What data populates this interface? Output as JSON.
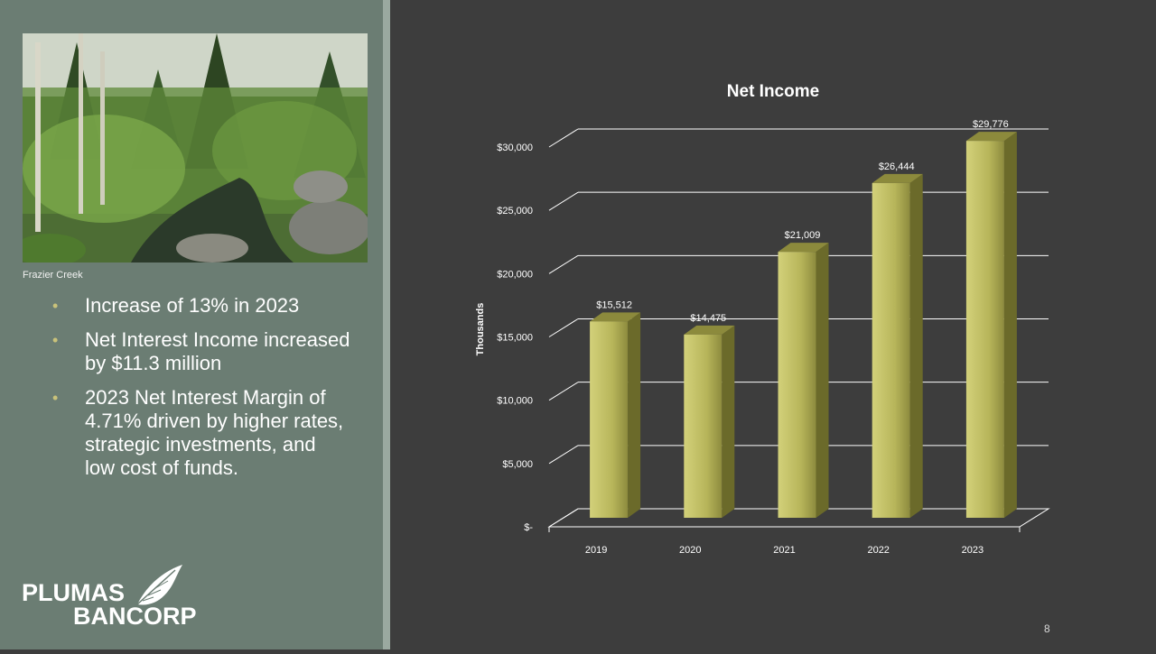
{
  "slide": {
    "photo_caption": "Frazier Creek",
    "bullets": [
      "Increase of 13% in 2023",
      "Net Interest Income increased by $11.3 million",
      "2023 Net Interest Margin of 4.71% driven by higher rates, strategic investments, and low cost of funds."
    ],
    "logo": {
      "line1": "PLUMAS",
      "line2": "BANCORP",
      "icon": "feather-icon"
    },
    "page_number": "8"
  },
  "chart_data": {
    "type": "bar",
    "title": "Net Income",
    "ylabel": "Thousands",
    "xlabel": "",
    "categories": [
      "2019",
      "2020",
      "2021",
      "2022",
      "2023"
    ],
    "values": [
      15512,
      14475,
      21009,
      26444,
      29776
    ],
    "data_labels": [
      "$15,512",
      "$14,475",
      "$21,009",
      "$26,444",
      "$29,776"
    ],
    "yticks": [
      0,
      5000,
      10000,
      15000,
      20000,
      25000,
      30000
    ],
    "ytick_labels": [
      "$-",
      "$5,000",
      "$10,000",
      "$15,000",
      "$20,000",
      "$25,000",
      "$30,000"
    ],
    "ylim": [
      0,
      30000
    ],
    "grid": true,
    "legend": "none",
    "style": "3d",
    "colors": {
      "bar_front": "#b7b55a",
      "bar_side": "#6b6a2a",
      "bar_top": "#8c8a3c",
      "grid": "#ffffff",
      "text": "#ffffff"
    }
  }
}
